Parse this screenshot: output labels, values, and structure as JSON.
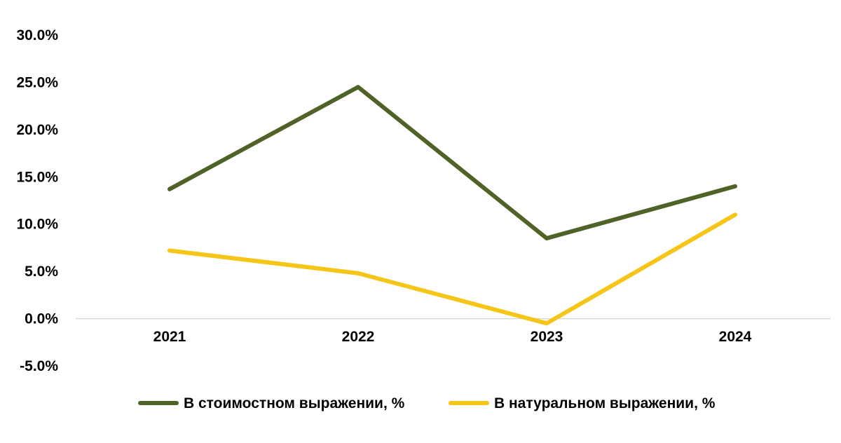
{
  "chart_data": {
    "type": "line",
    "categories": [
      "2021",
      "2022",
      "2023",
      "2024"
    ],
    "series": [
      {
        "name": "В стоимостном выражении, %",
        "values": [
          13.7,
          24.5,
          8.5,
          14.0
        ],
        "color": "#4F6228"
      },
      {
        "name": "В натуральном выражении, %",
        "values": [
          7.2,
          4.8,
          -0.5,
          11.0
        ],
        "color": "#F5C518"
      }
    ],
    "ylim": [
      -5,
      30
    ],
    "yticks": [
      -5,
      0,
      5,
      10,
      15,
      20,
      25,
      30
    ],
    "ytick_labels": [
      "-5.0%",
      "0.0%",
      "5.0%",
      "10.0%",
      "15.0%",
      "20.0%",
      "25.0%",
      "30.0%"
    ],
    "title": "",
    "xlabel": "",
    "ylabel": "",
    "grid": false,
    "legend_position": "bottom",
    "zero_line_color": "#D9D9D9"
  }
}
